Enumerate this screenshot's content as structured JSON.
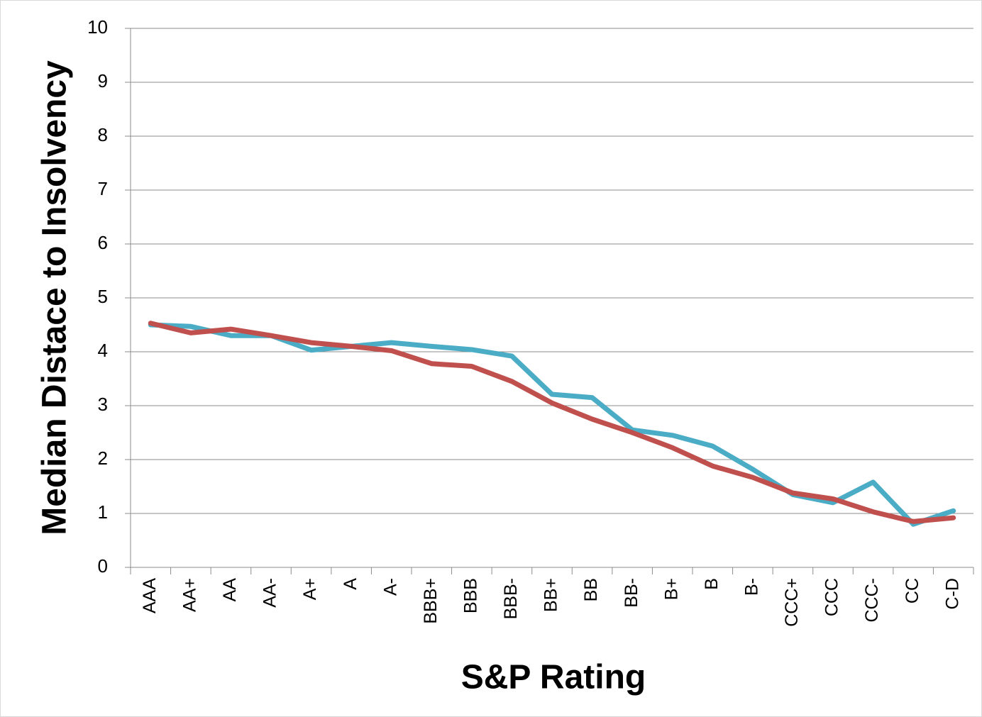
{
  "chart_data": {
    "type": "line",
    "x_label": "S&P Rating",
    "y_label": "Median Distace to Insolvency",
    "categories": [
      "AAA",
      "AA+",
      "AA",
      "AA-",
      "A+",
      "A",
      "A-",
      "BBB+",
      "BBB",
      "BBB-",
      "BB+",
      "BB",
      "BB-",
      "B+",
      "B",
      "B-",
      "CCC+",
      "CCC",
      "CCC-",
      "CC",
      "C-D"
    ],
    "series": [
      {
        "color": "#4bacc6",
        "values": [
          4.5,
          4.47,
          4.3,
          4.3,
          4.03,
          4.1,
          4.17,
          4.1,
          4.04,
          3.92,
          3.21,
          3.15,
          2.55,
          2.45,
          2.25,
          1.82,
          1.35,
          1.2,
          1.58,
          0.8,
          1.05
        ]
      },
      {
        "color": "#c0504d",
        "values": [
          4.53,
          4.35,
          4.42,
          4.3,
          4.17,
          4.1,
          4.02,
          3.78,
          3.73,
          3.45,
          3.05,
          2.75,
          2.5,
          2.22,
          1.88,
          1.67,
          1.38,
          1.27,
          1.03,
          0.85,
          0.92
        ]
      }
    ],
    "ylim": [
      0,
      10
    ],
    "yticks": [
      0,
      1,
      2,
      3,
      4,
      5,
      6,
      7,
      8,
      9,
      10
    ],
    "grid": true
  }
}
